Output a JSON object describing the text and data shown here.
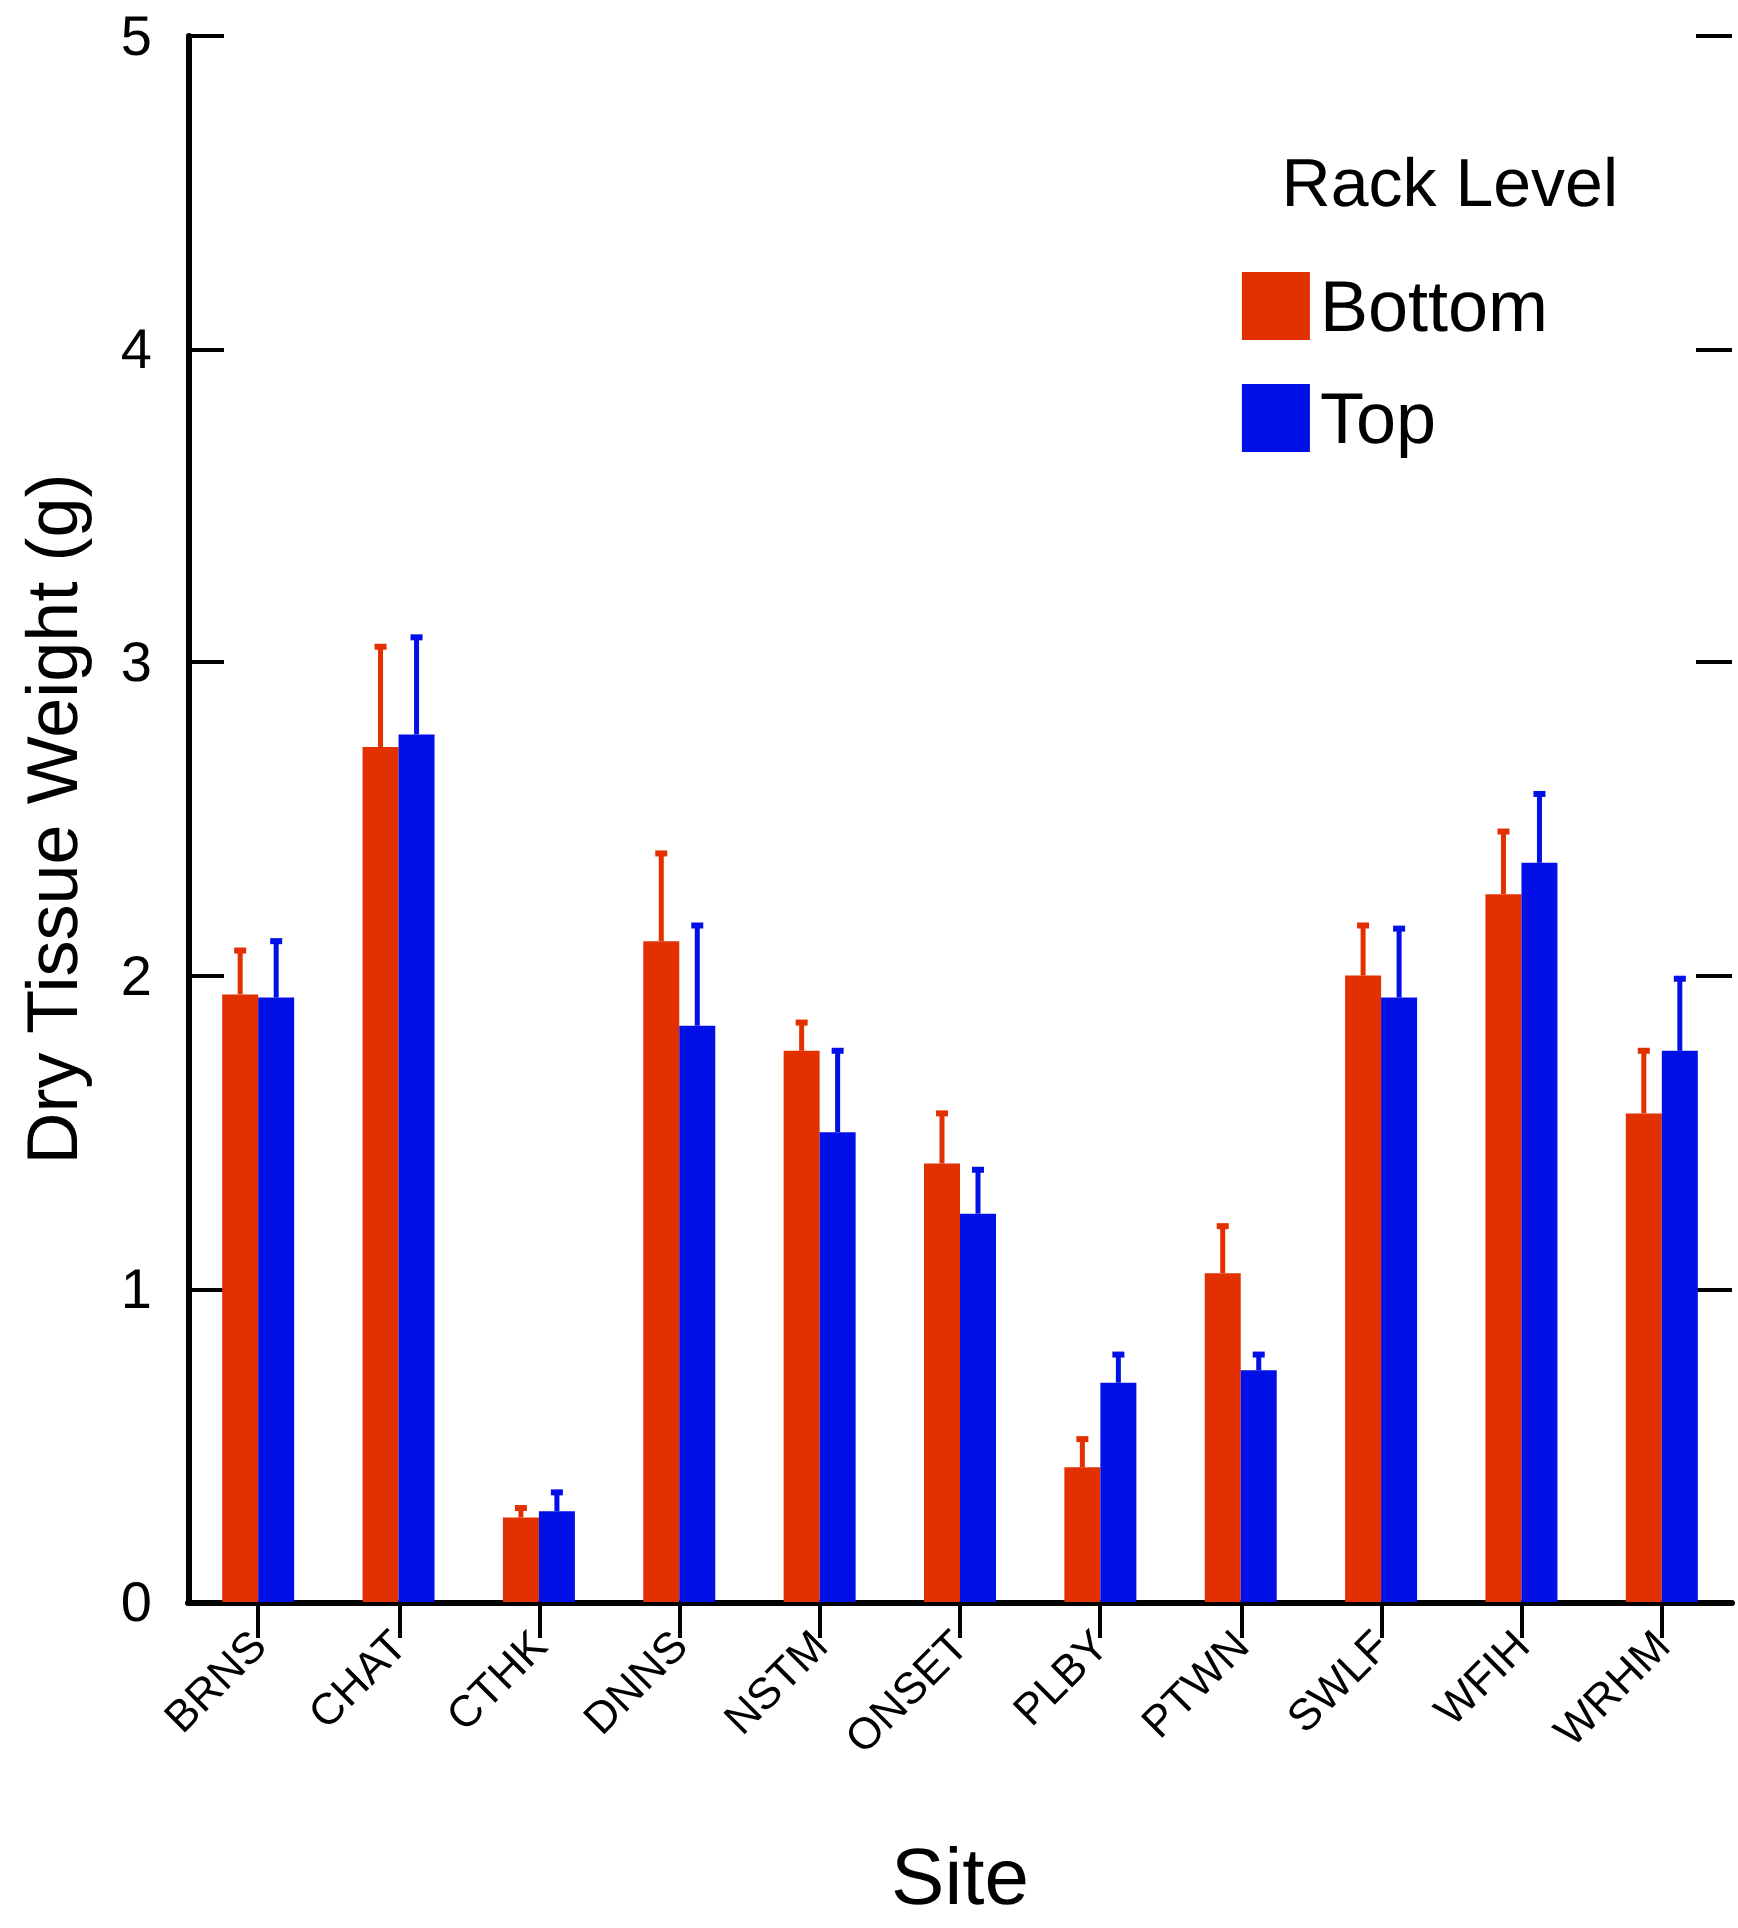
{
  "chart_data": {
    "type": "bar",
    "xlabel": "Site",
    "ylabel": "Dry Tissue Weight (g)",
    "legend_title": "Rack Level",
    "legend": "top right",
    "grid": false,
    "categories": [
      "BRNS",
      "CHAT",
      "CTHK",
      "DNNS",
      "NSTM",
      "ONSET",
      "PLBY",
      "PTWN",
      "SWLF",
      "WFIH",
      "WRHM"
    ],
    "ylim": [
      0,
      5
    ],
    "yticks": [
      0,
      1,
      2,
      3,
      4,
      5
    ],
    "series": [
      {
        "name": "Bottom",
        "color": "#e33000",
        "values": [
          1.94,
          2.73,
          0.27,
          2.11,
          1.76,
          1.4,
          0.43,
          1.05,
          2.0,
          2.26,
          1.56
        ],
        "errors": [
          [
            1.94,
            2.08
          ],
          [
            2.73,
            3.05
          ],
          [
            0.27,
            0.3
          ],
          [
            2.11,
            2.39
          ],
          [
            1.76,
            1.85
          ],
          [
            1.4,
            1.56
          ],
          [
            0.43,
            0.52
          ],
          [
            1.05,
            1.2
          ],
          [
            2.0,
            2.16
          ],
          [
            2.26,
            2.46
          ],
          [
            1.56,
            1.76
          ]
        ]
      },
      {
        "name": "Top",
        "color": "#0010e6",
        "values": [
          1.93,
          2.77,
          0.29,
          1.84,
          1.5,
          1.24,
          0.7,
          0.74,
          1.93,
          2.36,
          1.76
        ],
        "errors": [
          [
            1.93,
            2.11
          ],
          [
            2.77,
            3.08
          ],
          [
            0.29,
            0.35
          ],
          [
            1.84,
            2.16
          ],
          [
            1.5,
            1.76
          ],
          [
            1.24,
            1.38
          ],
          [
            0.7,
            0.79
          ],
          [
            0.74,
            0.79
          ],
          [
            1.93,
            2.15
          ],
          [
            2.36,
            2.58
          ],
          [
            1.76,
            1.99
          ]
        ]
      }
    ]
  }
}
